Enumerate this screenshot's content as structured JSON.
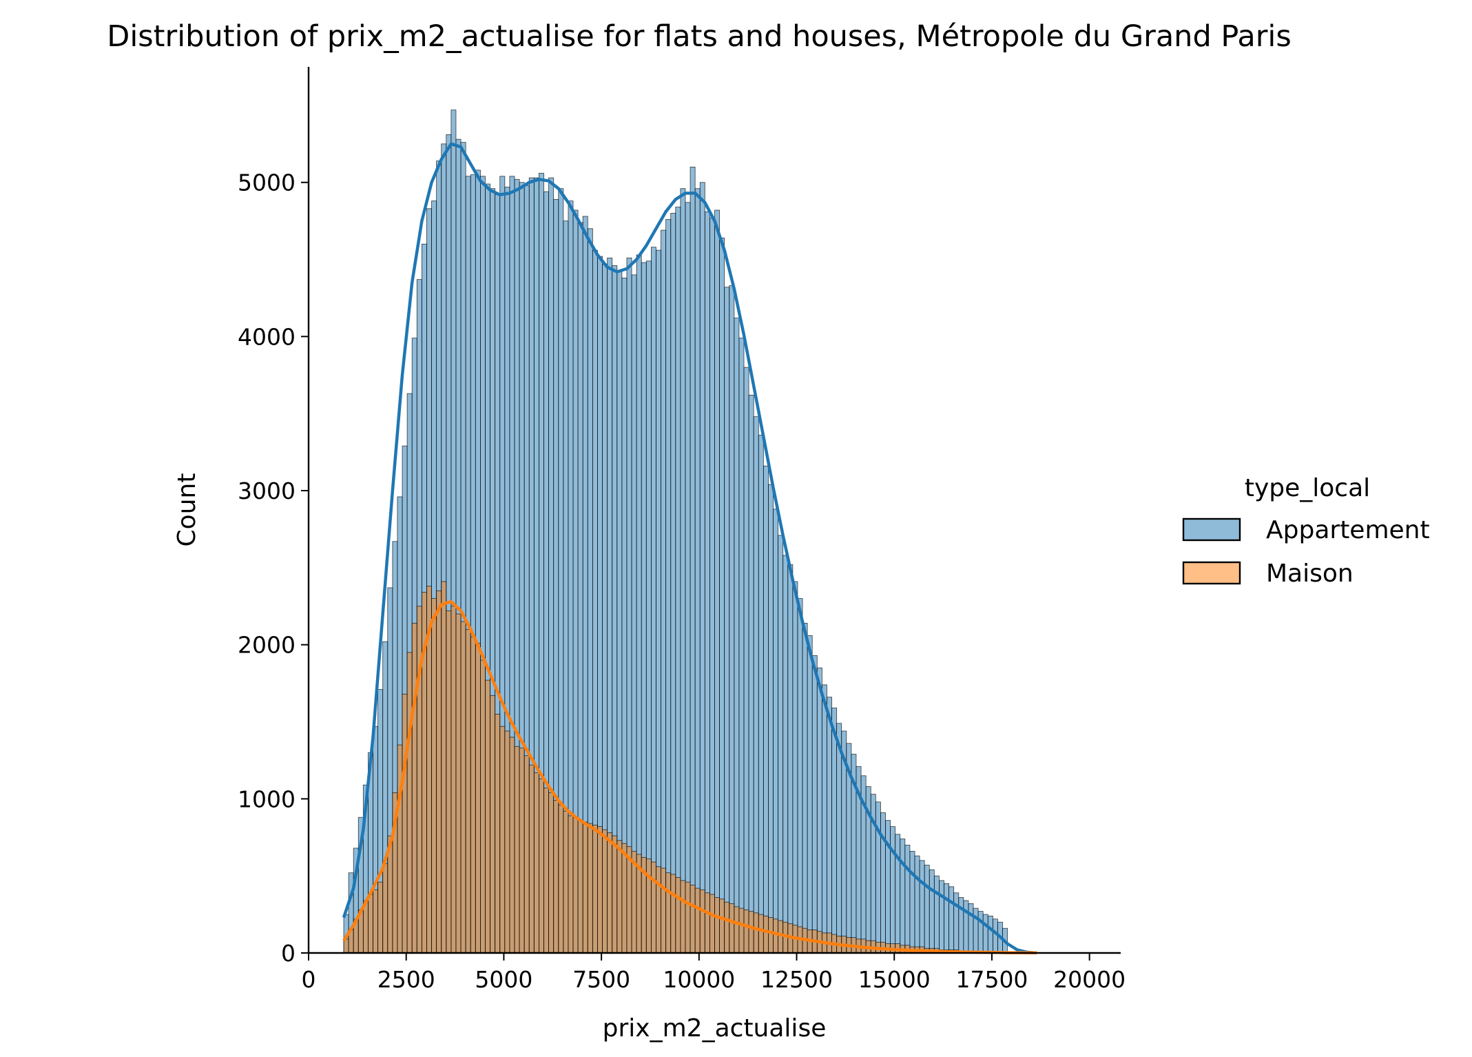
{
  "chart_data": {
    "type": "histogram",
    "title": "Distribution of prix_m2_actualise for flats and houses, Métropole du Grand Paris",
    "xlabel": "prix_m2_actualise",
    "ylabel": "Count",
    "xlim": [
      0,
      20800
    ],
    "ylim": [
      0,
      5750
    ],
    "xticks": [
      0,
      2500,
      5000,
      7500,
      10000,
      12500,
      15000,
      17500,
      20000
    ],
    "xtick_labels": [
      "0",
      "2500",
      "5000",
      "7500",
      "10000",
      "12500",
      "15000",
      "17500",
      "20000"
    ],
    "yticks": [
      0,
      1000,
      2000,
      3000,
      4000,
      5000
    ],
    "ytick_labels": [
      "0",
      "1000",
      "2000",
      "3000",
      "4000",
      "5000"
    ],
    "legend": {
      "title": "type_local",
      "placement": "right",
      "entries": [
        "Appartement",
        "Maison"
      ]
    },
    "bin_start": 900,
    "bin_width": 125,
    "series": [
      {
        "name": "Appartement",
        "fill": "#1f77b4",
        "line": "#1f77b4",
        "counts": [
          250,
          520,
          680,
          880,
          1090,
          1300,
          1470,
          1710,
          2020,
          2370,
          2670,
          2960,
          3290,
          3630,
          3990,
          4370,
          4600,
          4830,
          4880,
          5140,
          5250,
          5310,
          5470,
          5280,
          5260,
          5040,
          5050,
          5080,
          5040,
          4990,
          4960,
          4920,
          5040,
          4970,
          5040,
          5020,
          5000,
          4980,
          5030,
          5030,
          5060,
          4940,
          5030,
          4890,
          4960,
          4750,
          4880,
          4820,
          4740,
          4780,
          4700,
          4560,
          4520,
          4470,
          4510,
          4460,
          4430,
          4380,
          4510,
          4400,
          4530,
          4480,
          4490,
          4580,
          4560,
          4690,
          4760,
          4800,
          4840,
          4960,
          4870,
          5100,
          4960,
          5000,
          4810,
          4770,
          4820,
          4640,
          4320,
          4330,
          4120,
          3990,
          3800,
          3620,
          3480,
          3360,
          3160,
          3040,
          2880,
          2710,
          2580,
          2520,
          2410,
          2300,
          2140,
          2060,
          1930,
          1850,
          1740,
          1660,
          1590,
          1490,
          1440,
          1360,
          1290,
          1210,
          1150,
          1080,
          1030,
          980,
          910,
          860,
          820,
          770,
          740,
          700,
          660,
          630,
          600,
          570,
          540,
          500,
          470,
          450,
          430,
          390,
          360,
          340,
          320,
          290,
          270,
          250,
          240,
          220,
          200,
          160
        ],
        "kde": [
          [
            900,
            230
          ],
          [
            1150,
            420
          ],
          [
            1400,
            800
          ],
          [
            1650,
            1400
          ],
          [
            1900,
            2200
          ],
          [
            2150,
            3000
          ],
          [
            2400,
            3750
          ],
          [
            2650,
            4350
          ],
          [
            2900,
            4750
          ],
          [
            3150,
            5000
          ],
          [
            3400,
            5150
          ],
          [
            3650,
            5250
          ],
          [
            3900,
            5230
          ],
          [
            4150,
            5120
          ],
          [
            4400,
            5010
          ],
          [
            4650,
            4950
          ],
          [
            4900,
            4920
          ],
          [
            5150,
            4930
          ],
          [
            5400,
            4960
          ],
          [
            5650,
            5000
          ],
          [
            5900,
            5020
          ],
          [
            6150,
            5010
          ],
          [
            6400,
            4960
          ],
          [
            6650,
            4870
          ],
          [
            6900,
            4760
          ],
          [
            7150,
            4640
          ],
          [
            7400,
            4530
          ],
          [
            7650,
            4450
          ],
          [
            7900,
            4420
          ],
          [
            8150,
            4440
          ],
          [
            8400,
            4500
          ],
          [
            8650,
            4590
          ],
          [
            8900,
            4700
          ],
          [
            9150,
            4810
          ],
          [
            9400,
            4890
          ],
          [
            9650,
            4930
          ],
          [
            9900,
            4930
          ],
          [
            10150,
            4870
          ],
          [
            10400,
            4750
          ],
          [
            10650,
            4560
          ],
          [
            10900,
            4310
          ],
          [
            11150,
            4010
          ],
          [
            11400,
            3680
          ],
          [
            11650,
            3350
          ],
          [
            11900,
            3020
          ],
          [
            12150,
            2710
          ],
          [
            12400,
            2420
          ],
          [
            12650,
            2150
          ],
          [
            12900,
            1900
          ],
          [
            13150,
            1680
          ],
          [
            13400,
            1480
          ],
          [
            13650,
            1300
          ],
          [
            13900,
            1140
          ],
          [
            14150,
            1000
          ],
          [
            14400,
            880
          ],
          [
            14650,
            770
          ],
          [
            14900,
            680
          ],
          [
            15150,
            600
          ],
          [
            15400,
            530
          ],
          [
            15650,
            470
          ],
          [
            15900,
            420
          ],
          [
            16150,
            380
          ],
          [
            16400,
            340
          ],
          [
            16650,
            300
          ],
          [
            16900,
            260
          ],
          [
            17150,
            220
          ],
          [
            17400,
            170
          ],
          [
            17650,
            120
          ],
          [
            17900,
            60
          ],
          [
            18150,
            20
          ],
          [
            18400,
            5
          ],
          [
            18650,
            0
          ]
        ]
      },
      {
        "name": "Maison",
        "fill": "#ff7f0e",
        "line": "#ff7f0e",
        "counts": [
          90,
          150,
          220,
          280,
          340,
          380,
          410,
          460,
          580,
          760,
          1040,
          1350,
          1680,
          1950,
          2140,
          2250,
          2340,
          2380,
          2300,
          2350,
          2410,
          2220,
          2250,
          2200,
          2150,
          2100,
          2050,
          2010,
          1900,
          1770,
          1670,
          1550,
          1470,
          1440,
          1400,
          1340,
          1330,
          1280,
          1220,
          1170,
          1130,
          1070,
          1040,
          990,
          960,
          920,
          890,
          880,
          860,
          850,
          840,
          830,
          820,
          800,
          780,
          760,
          730,
          710,
          690,
          660,
          640,
          620,
          610,
          590,
          560,
          550,
          520,
          510,
          490,
          470,
          460,
          440,
          420,
          410,
          390,
          380,
          360,
          350,
          330,
          320,
          300,
          290,
          280,
          270,
          260,
          250,
          240,
          230,
          220,
          210,
          200,
          190,
          180,
          170,
          160,
          150,
          150,
          140,
          130,
          130,
          120,
          110,
          110,
          100,
          100,
          90,
          90,
          80,
          80,
          70,
          70,
          60,
          60,
          60,
          50,
          50,
          40,
          40,
          40,
          30,
          30,
          30,
          20,
          20,
          20,
          20,
          10,
          10,
          10,
          10,
          10,
          10,
          10,
          0
        ],
        "kde": [
          [
            900,
            80
          ],
          [
            1150,
            180
          ],
          [
            1400,
            300
          ],
          [
            1650,
            420
          ],
          [
            1900,
            550
          ],
          [
            2150,
            760
          ],
          [
            2400,
            1110
          ],
          [
            2650,
            1540
          ],
          [
            2900,
            1910
          ],
          [
            3150,
            2150
          ],
          [
            3400,
            2260
          ],
          [
            3650,
            2280
          ],
          [
            3900,
            2220
          ],
          [
            4150,
            2100
          ],
          [
            4400,
            1960
          ],
          [
            4650,
            1810
          ],
          [
            4900,
            1660
          ],
          [
            5150,
            1520
          ],
          [
            5400,
            1400
          ],
          [
            5650,
            1290
          ],
          [
            5900,
            1180
          ],
          [
            6150,
            1080
          ],
          [
            6400,
            990
          ],
          [
            6650,
            920
          ],
          [
            6900,
            870
          ],
          [
            7150,
            830
          ],
          [
            7400,
            790
          ],
          [
            7650,
            740
          ],
          [
            7900,
            690
          ],
          [
            8150,
            630
          ],
          [
            8400,
            570
          ],
          [
            8650,
            510
          ],
          [
            8900,
            460
          ],
          [
            9150,
            410
          ],
          [
            9400,
            370
          ],
          [
            9650,
            330
          ],
          [
            9900,
            300
          ],
          [
            10150,
            270
          ],
          [
            10400,
            240
          ],
          [
            10650,
            220
          ],
          [
            10900,
            200
          ],
          [
            11150,
            180
          ],
          [
            11400,
            160
          ],
          [
            11650,
            145
          ],
          [
            11900,
            130
          ],
          [
            12150,
            115
          ],
          [
            12400,
            100
          ],
          [
            12650,
            90
          ],
          [
            12900,
            80
          ],
          [
            13150,
            70
          ],
          [
            13400,
            60
          ],
          [
            13650,
            52
          ],
          [
            13900,
            45
          ],
          [
            14150,
            38
          ],
          [
            14400,
            32
          ],
          [
            14650,
            28
          ],
          [
            14900,
            24
          ],
          [
            15150,
            20
          ],
          [
            15400,
            17
          ],
          [
            15650,
            14
          ],
          [
            15900,
            12
          ],
          [
            16150,
            10
          ],
          [
            16400,
            8
          ],
          [
            16650,
            7
          ],
          [
            16900,
            6
          ],
          [
            17150,
            5
          ],
          [
            17400,
            4
          ],
          [
            17650,
            3
          ],
          [
            17900,
            2
          ],
          [
            18150,
            2
          ],
          [
            18400,
            1
          ],
          [
            18650,
            1
          ]
        ]
      }
    ]
  }
}
